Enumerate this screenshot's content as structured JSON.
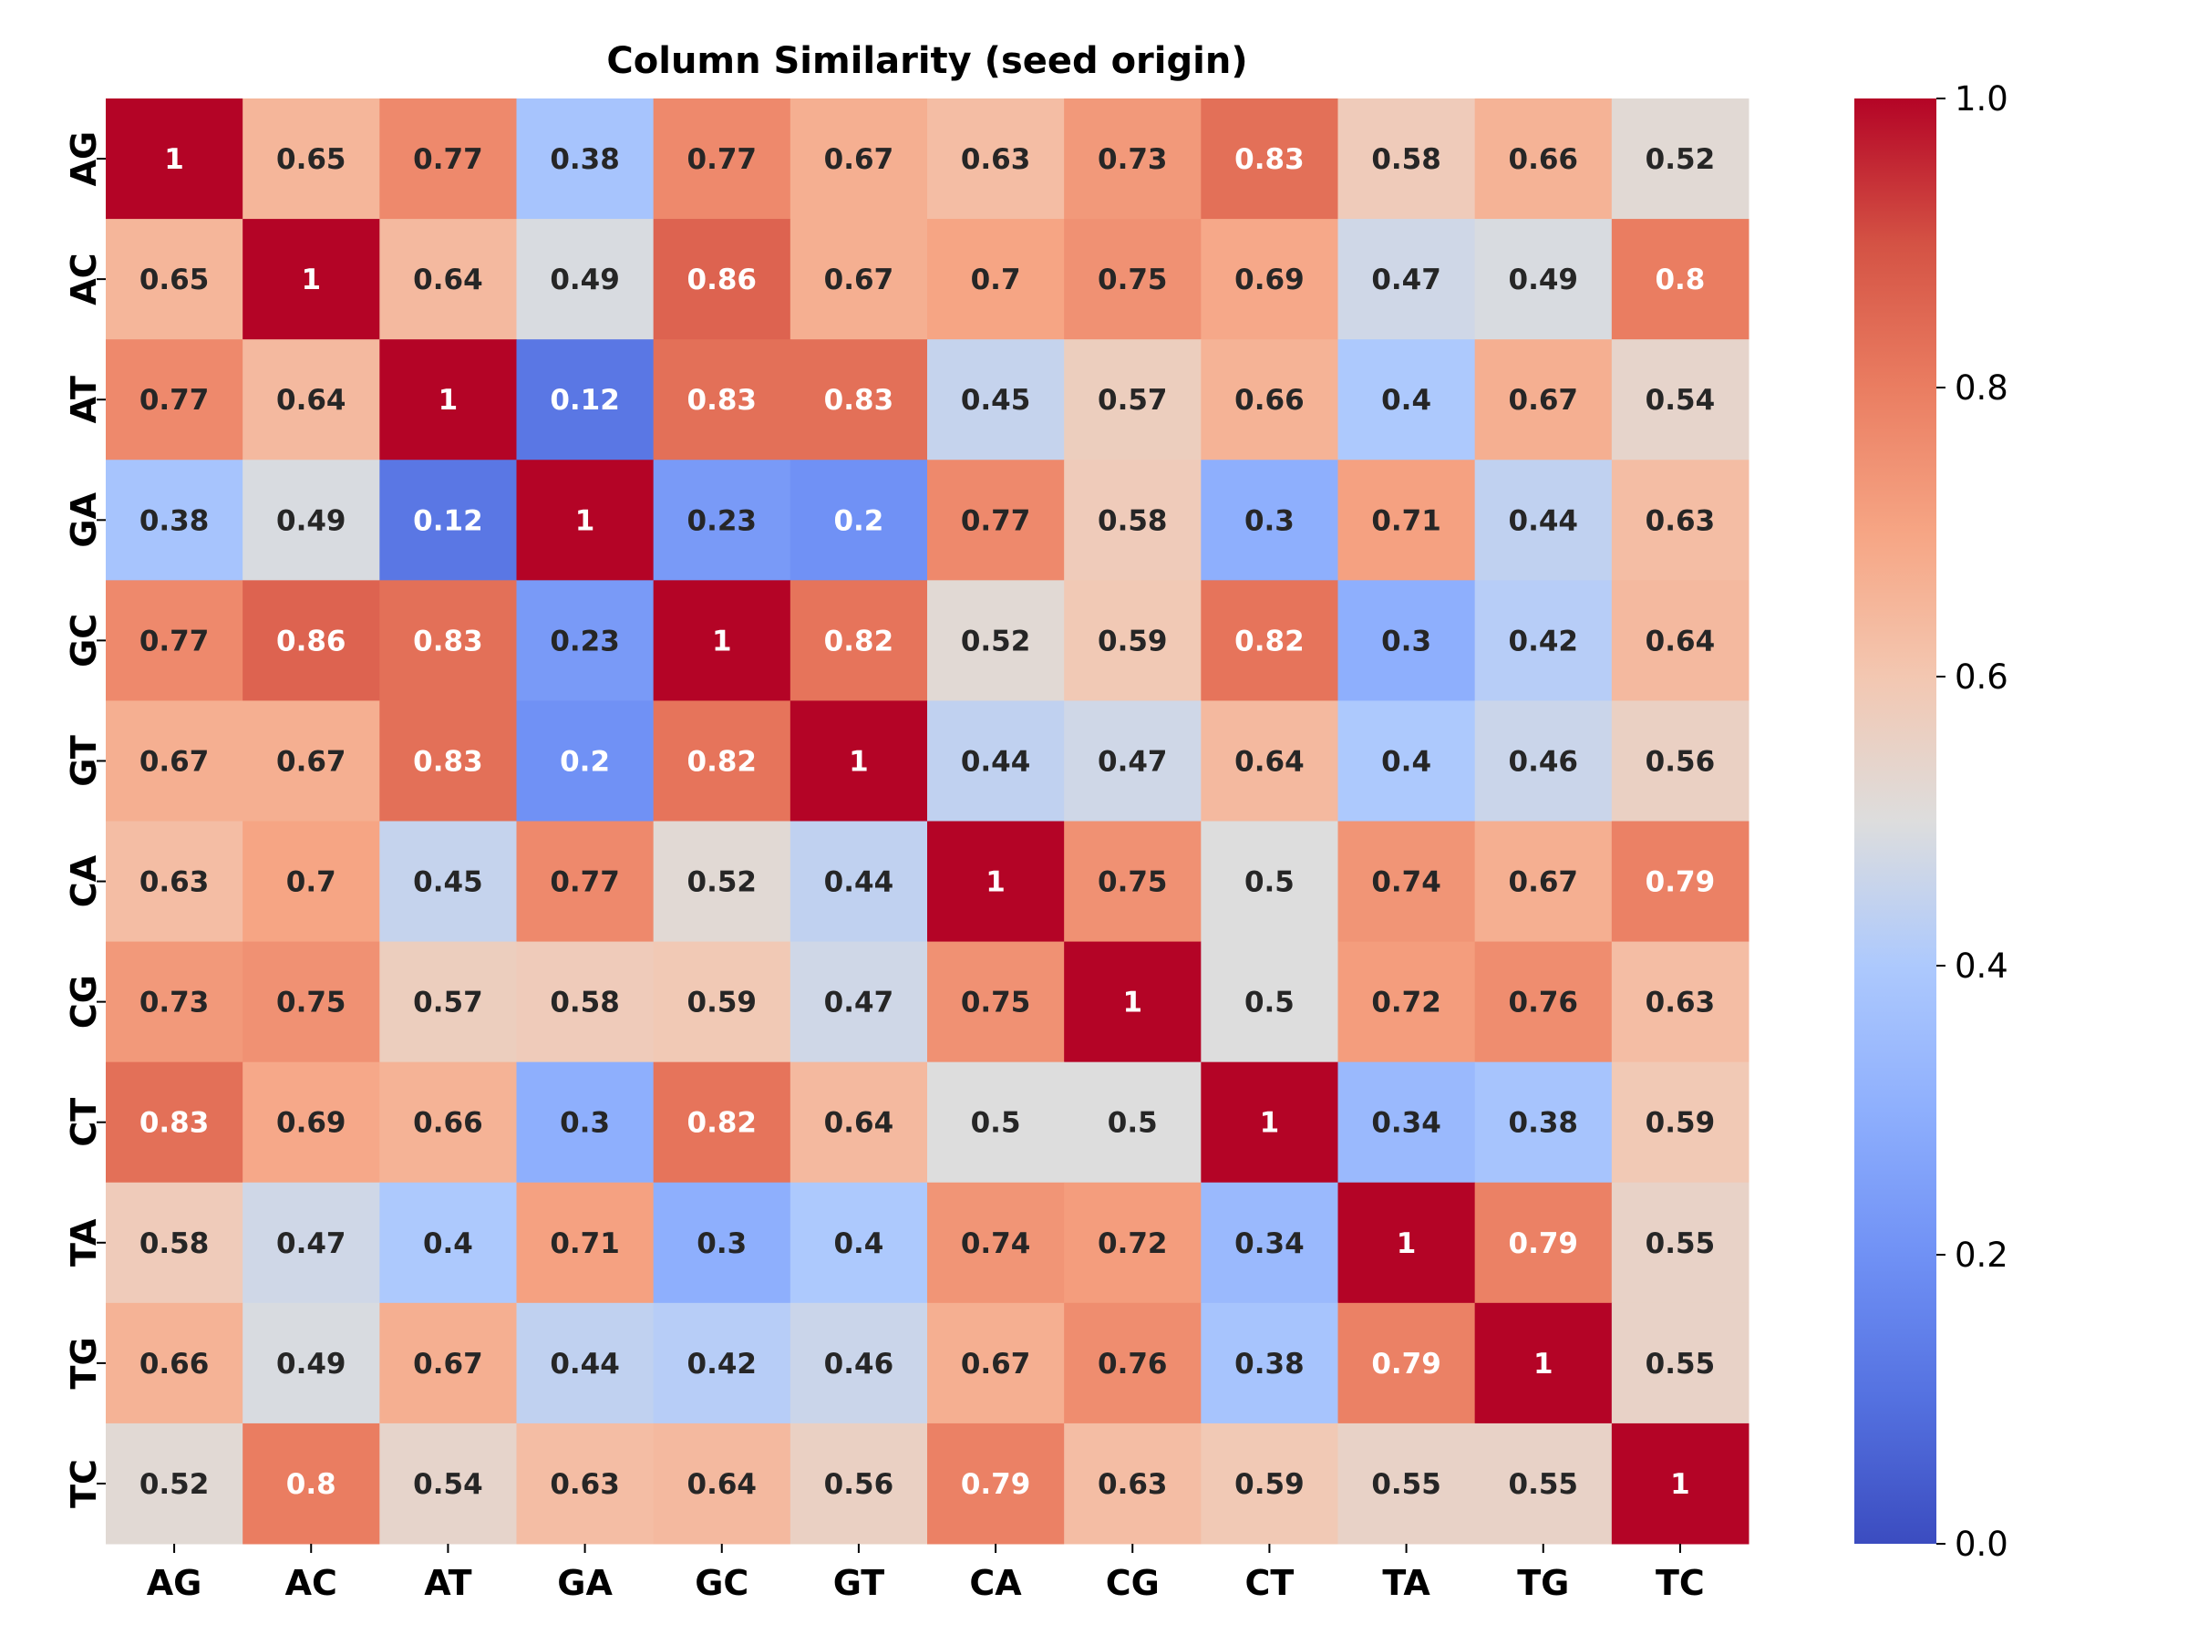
{
  "chart_data": {
    "type": "heatmap",
    "title": "Column Similarity (seed origin)",
    "xlabel": "",
    "ylabel": "",
    "x_categories": [
      "AG",
      "AC",
      "AT",
      "GA",
      "GC",
      "GT",
      "CA",
      "CG",
      "CT",
      "TA",
      "TG",
      "TC"
    ],
    "y_categories": [
      "AG",
      "AC",
      "AT",
      "GA",
      "GC",
      "GT",
      "CA",
      "CG",
      "CT",
      "TA",
      "TG",
      "TC"
    ],
    "values": [
      [
        1,
        0.65,
        0.77,
        0.38,
        0.77,
        0.67,
        0.63,
        0.73,
        0.83,
        0.58,
        0.66,
        0.52
      ],
      [
        0.65,
        1,
        0.64,
        0.49,
        0.86,
        0.67,
        0.7,
        0.75,
        0.69,
        0.47,
        0.49,
        0.8
      ],
      [
        0.77,
        0.64,
        1,
        0.12,
        0.83,
        0.83,
        0.45,
        0.57,
        0.66,
        0.4,
        0.67,
        0.54
      ],
      [
        0.38,
        0.49,
        0.12,
        1,
        0.23,
        0.2,
        0.77,
        0.58,
        0.3,
        0.71,
        0.44,
        0.63
      ],
      [
        0.77,
        0.86,
        0.83,
        0.23,
        1,
        0.82,
        0.52,
        0.59,
        0.82,
        0.3,
        0.42,
        0.64
      ],
      [
        0.67,
        0.67,
        0.83,
        0.2,
        0.82,
        1,
        0.44,
        0.47,
        0.64,
        0.4,
        0.46,
        0.56
      ],
      [
        0.63,
        0.7,
        0.45,
        0.77,
        0.52,
        0.44,
        1,
        0.75,
        0.5,
        0.74,
        0.67,
        0.79
      ],
      [
        0.73,
        0.75,
        0.57,
        0.58,
        0.59,
        0.47,
        0.75,
        1,
        0.5,
        0.72,
        0.76,
        0.63
      ],
      [
        0.83,
        0.69,
        0.66,
        0.3,
        0.82,
        0.64,
        0.5,
        0.5,
        1,
        0.34,
        0.38,
        0.59
      ],
      [
        0.58,
        0.47,
        0.4,
        0.71,
        0.3,
        0.4,
        0.74,
        0.72,
        0.34,
        1,
        0.79,
        0.55
      ],
      [
        0.66,
        0.49,
        0.67,
        0.44,
        0.42,
        0.46,
        0.67,
        0.76,
        0.38,
        0.79,
        1,
        0.55
      ],
      [
        0.52,
        0.8,
        0.54,
        0.63,
        0.64,
        0.56,
        0.79,
        0.63,
        0.59,
        0.55,
        0.55,
        1
      ]
    ],
    "colormap": "coolwarm",
    "vmin": 0.0,
    "vmax": 1.0,
    "colorbar": {
      "ticks": [
        0.0,
        0.2,
        0.4,
        0.6,
        0.8,
        1.0
      ],
      "tick_labels": [
        "0.0",
        "0.2",
        "0.4",
        "0.6",
        "0.8",
        "1.0"
      ]
    },
    "annotations": true,
    "grid": false,
    "legend": "colorbar-right"
  }
}
